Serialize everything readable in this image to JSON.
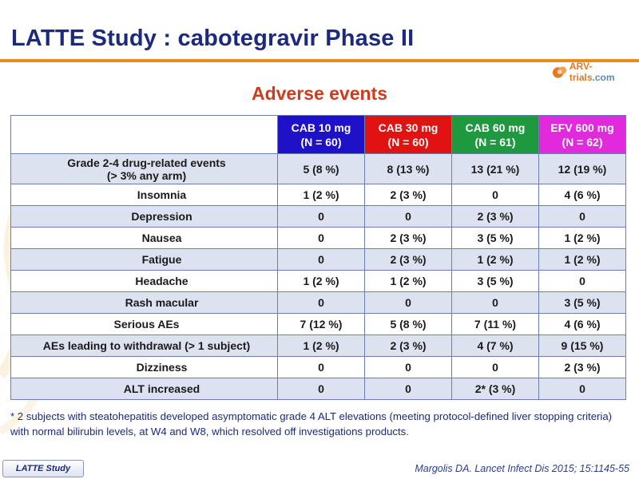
{
  "slide": {
    "title": "LATTE Study : cabotegravir Phase II",
    "subtitle": "Adverse events",
    "logo": {
      "main": "ARV-trials",
      "suffix": ".com"
    },
    "footer_tag": "LATTE Study",
    "citation": "Margolis DA. Lancet Infect Dis 2015; 15:1145-55"
  },
  "table": {
    "columns": [
      {
        "line1": "CAB 10 mg",
        "line2": "(N = 60)",
        "color": "#1f11c8"
      },
      {
        "line1": "CAB 30 mg",
        "line2": "(N = 60)",
        "color": "#e01212"
      },
      {
        "line1": "CAB 60 mg",
        "line2": "(N = 61)",
        "color": "#1f9940"
      },
      {
        "line1": "EFV 600 mg",
        "line2": "(N = 62)",
        "color": "#e02adc"
      }
    ],
    "rows": [
      {
        "label": "Grade 2-4 drug-related events",
        "label2": "(> 3% any arm)",
        "values": [
          "5 (8 %)",
          "8 (13 %)",
          "13 (21 %)",
          "12 (19 %)"
        ]
      },
      {
        "label": "Insomnia",
        "values": [
          "1 (2 %)",
          "2 (3 %)",
          "0",
          "4 (6 %)"
        ]
      },
      {
        "label": "Depression",
        "values": [
          "0",
          "0",
          "2 (3 %)",
          "0"
        ]
      },
      {
        "label": "Nausea",
        "values": [
          "0",
          "2 (3 %)",
          "3 (5 %)",
          "1 (2 %)"
        ]
      },
      {
        "label": "Fatigue",
        "values": [
          "0",
          "2 (3 %)",
          "1 (2 %)",
          "1 (2 %)"
        ]
      },
      {
        "label": "Headache",
        "values": [
          "1 (2 %)",
          "1 (2 %)",
          "3 (5 %)",
          "0"
        ]
      },
      {
        "label": "Rash macular",
        "values": [
          "0",
          "0",
          "0",
          "3 (5 %)"
        ]
      },
      {
        "label": "Serious AEs",
        "values": [
          "7 (12 %)",
          "5 (8 %)",
          "7 (11 %)",
          "4 (6 %)"
        ]
      },
      {
        "label": "AEs leading to withdrawal (> 1 subject)",
        "values": [
          "1 (2 %)",
          "2 (3 %)",
          "4 (7 %)",
          "9 (15 %)"
        ]
      },
      {
        "label": "Dizziness",
        "values": [
          "0",
          "0",
          "0",
          "2 (3 %)"
        ]
      },
      {
        "label": "ALT increased",
        "values": [
          "0",
          "0",
          "2* (3 %)",
          "0"
        ]
      }
    ],
    "footnote": "* 2 subjects with steatohepatitis developed asymptomatic grade 4 ALT elevations (meeting protocol-defined liver stopping criteria) with normal bilirubin levels, at W4 and W8, which resolved off investigations products."
  }
}
